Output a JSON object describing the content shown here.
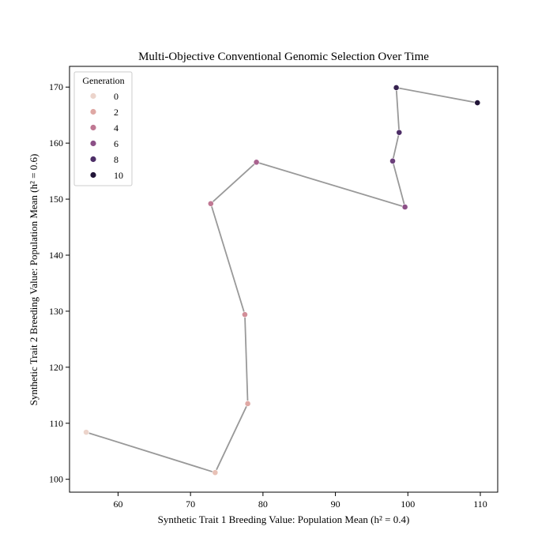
{
  "chart_data": {
    "type": "scatter",
    "title": "Multi-Objective Conventional Genomic Selection Over Time",
    "xlabel": "Synthetic Trait 1 Breeding Value: Population Mean (h² = 0.4)",
    "ylabel": "Synthetic Trait 2 Breeding Value: Population Mean (h² = 0.6)",
    "xlim": [
      53.3,
      112.4
    ],
    "ylim": [
      97.7,
      173.7
    ],
    "xticks": [
      60,
      70,
      80,
      90,
      100,
      110
    ],
    "yticks": [
      100,
      110,
      120,
      130,
      140,
      150,
      160,
      170
    ],
    "grid": false,
    "connect_points": true,
    "line_color": "#999999",
    "legend": {
      "title": "Generation",
      "position": "top-left",
      "entries": [
        0,
        2,
        4,
        6,
        8,
        10
      ]
    },
    "points": [
      {
        "generation": 0,
        "x": 55.6,
        "y": 108.4
      },
      {
        "generation": 1,
        "x": 73.4,
        "y": 101.2
      },
      {
        "generation": 2,
        "x": 77.9,
        "y": 113.5
      },
      {
        "generation": 3,
        "x": 77.5,
        "y": 129.4
      },
      {
        "generation": 4,
        "x": 72.8,
        "y": 149.2
      },
      {
        "generation": 5,
        "x": 79.1,
        "y": 156.6
      },
      {
        "generation": 6,
        "x": 99.6,
        "y": 148.6
      },
      {
        "generation": 7,
        "x": 97.9,
        "y": 156.8
      },
      {
        "generation": 8,
        "x": 98.8,
        "y": 161.9
      },
      {
        "generation": 9,
        "x": 98.4,
        "y": 169.9
      },
      {
        "generation": 10,
        "x": 109.6,
        "y": 167.2
      }
    ],
    "color_scale": [
      "#ecd4cb",
      "#e8c1b6",
      "#dfa8a4",
      "#d28f99",
      "#c07893",
      "#a9638f",
      "#8c5087",
      "#6c3f7b",
      "#4d2e67",
      "#36224f",
      "#221538"
    ]
  }
}
